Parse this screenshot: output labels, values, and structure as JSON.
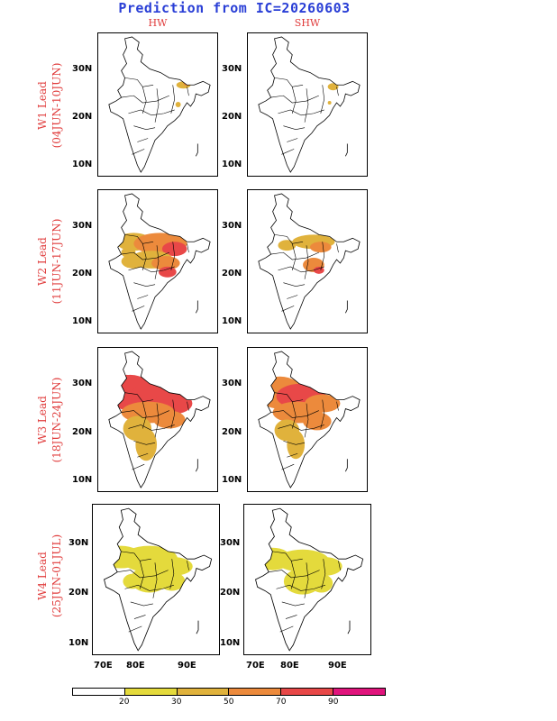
{
  "title": "Prediction from IC=20260603",
  "columns": [
    "HW",
    "SHW"
  ],
  "rows": [
    {
      "lead": "W1 Lead",
      "period": "(04JUN-10JUN)"
    },
    {
      "lead": "W2 Lead",
      "period": "(11JUN-17JUN)"
    },
    {
      "lead": "W3 Lead",
      "period": "(18JUN-24JUN)"
    },
    {
      "lead": "W4 Lead",
      "period": "(25JUN-01JUL)"
    }
  ],
  "axes": {
    "lat_ticks": [
      "30N",
      "20N",
      "10N"
    ],
    "lon_ticks": [
      "70E",
      "80E",
      "90E"
    ]
  },
  "colorbar": {
    "levels": [
      "20",
      "30",
      "50",
      "70",
      "90"
    ],
    "colors": [
      "#ffffff",
      "#e4da3c",
      "#e0b23c",
      "#ec8a3c",
      "#e84848",
      "#e0147c"
    ]
  }
}
